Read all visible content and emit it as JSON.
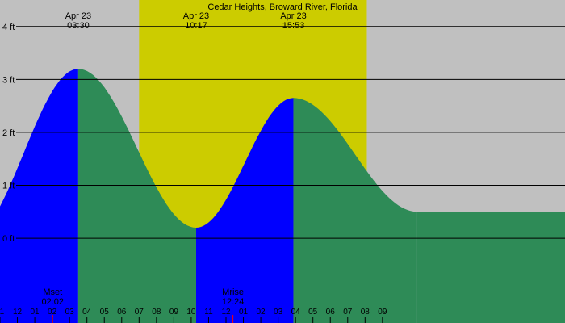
{
  "chart_data": {
    "type": "area",
    "title": "Cedar Heights, Broward River, Florida",
    "y_unit": "ft",
    "ylim": [
      -1.6,
      4.5
    ],
    "x_range_hours": [
      -1.0,
      31.5
    ],
    "y_ticks": [
      {
        "value": 4,
        "label": "4 ft"
      },
      {
        "value": 3,
        "label": "3 ft"
      },
      {
        "value": 2,
        "label": "2 ft"
      },
      {
        "value": 1,
        "label": "1 ft"
      },
      {
        "value": 0,
        "label": "0 ft"
      }
    ],
    "x_tick_labels": [
      "11",
      "12",
      "01",
      "02",
      "03",
      "04",
      "05",
      "06",
      "07",
      "08",
      "09",
      "10",
      "11",
      "12",
      "01",
      "02",
      "03",
      "04",
      "05",
      "06",
      "07",
      "08",
      "09"
    ],
    "x_tick_hours": [
      -1,
      0,
      1,
      2,
      3,
      4,
      5,
      6,
      7,
      8,
      9,
      10,
      11,
      12,
      13,
      14,
      15,
      16,
      17,
      18,
      19,
      20,
      21
    ],
    "daylight_hours": [
      7.0,
      20.1
    ],
    "tide_extremes": [
      {
        "date": "Apr 23",
        "time": "03:30",
        "hour": 3.5,
        "height_ft": 3.2,
        "kind": "high",
        "label_shown": true
      },
      {
        "date": "",
        "time": "",
        "hour": 10.28,
        "height_ft": 0.2,
        "kind": "low",
        "label_shown": false
      },
      {
        "date": "Apr 23",
        "time": "10:17",
        "hour": 10.28,
        "height_ft": 0.2,
        "kind": "low",
        "label_shown": true
      },
      {
        "date": "Apr 23",
        "time": "15:53",
        "hour": 15.88,
        "height_ft": 2.65,
        "kind": "high",
        "label_shown": true
      },
      {
        "date": "",
        "time": "",
        "hour": 23.0,
        "height_ft": 0.5,
        "kind": "low",
        "label_shown": false
      }
    ],
    "moon_events": [
      {
        "name": "Mset",
        "time": "02:02",
        "hour": 2.03
      },
      {
        "name": "Mrise",
        "time": "12:24",
        "hour": 12.4
      }
    ],
    "colors": {
      "background": "#c0c0c0",
      "daylight": "#cccc00",
      "rising": "#0000ff",
      "falling": "#2e8b57",
      "gridline": "#000000",
      "moon_marker": "#ff0000"
    }
  }
}
